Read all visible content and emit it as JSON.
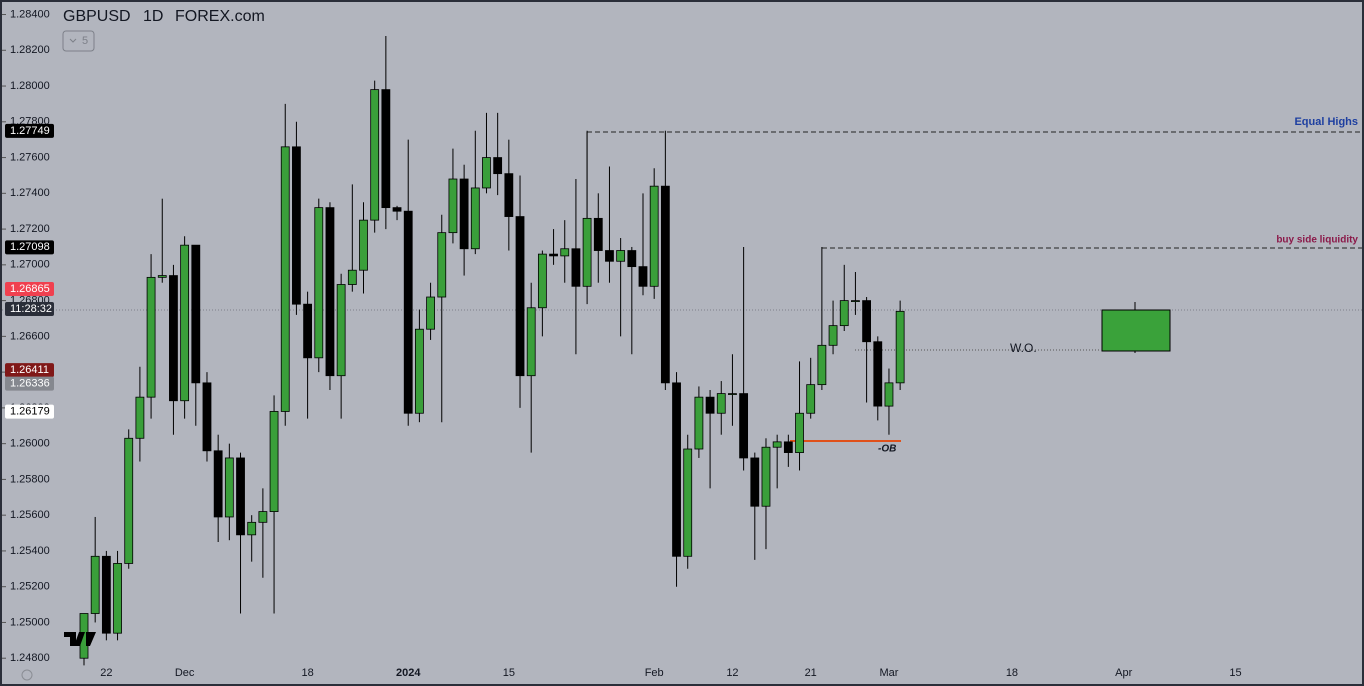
{
  "header": {
    "symbol": "GBPUSD",
    "interval": "1D",
    "exchange": "FOREX.com",
    "indicator_count": 5
  },
  "chart_data": {
    "type": "candlestick",
    "categories": [
      null,
      null,
      "22",
      null,
      null,
      null,
      null,
      null,
      null,
      "Dec",
      null,
      null,
      null,
      null,
      null,
      null,
      null,
      null,
      null,
      null,
      "18",
      null,
      null,
      null,
      null,
      null,
      null,
      null,
      null,
      "2024",
      null,
      null,
      null,
      null,
      null,
      null,
      null,
      null,
      "15",
      null,
      null,
      null,
      null,
      null,
      null,
      null,
      null,
      null,
      null,
      null,
      null,
      "Feb",
      null,
      null,
      null,
      null,
      null,
      null,
      "12",
      null,
      null,
      null,
      null,
      null,
      null,
      "21",
      null,
      null,
      null,
      null,
      null,
      null,
      "Mar",
      null,
      null,
      null,
      null,
      null,
      null,
      null,
      null,
      null,
      null,
      "18",
      null,
      null,
      null,
      null,
      null,
      null,
      null,
      null,
      null,
      "Apr",
      null,
      null,
      null,
      null,
      null,
      null,
      null,
      null,
      null,
      "15"
    ],
    "open": [
      1.248,
      1.2505,
      1.2537,
      1.2494,
      1.2533,
      1.2603,
      1.2626,
      1.2693,
      1.2694,
      1.2624,
      1.2711,
      1.2634,
      1.2596,
      1.2559,
      1.2592,
      1.2549,
      1.2556,
      1.2562,
      1.2618,
      1.2766,
      1.2678,
      1.2648,
      1.2732,
      1.2638,
      1.2689,
      1.2697,
      1.2725,
      1.2798,
      1.2732,
      1.273,
      1.2617,
      1.2664,
      1.2682,
      1.2718,
      1.2748,
      1.2709,
      1.2743,
      1.276,
      1.2751,
      1.2727,
      1.2638,
      1.2676,
      1.2706,
      1.2705,
      1.2709,
      1.2688,
      1.2726,
      1.2708,
      1.2702,
      1.2708,
      1.2699,
      1.2688,
      1.2744,
      1.2634,
      1.2537,
      1.2597,
      1.2626,
      1.2617,
      1.2628,
      1.2628,
      1.2592,
      1.2565,
      1.2598,
      1.2601,
      1.2595,
      1.2617,
      1.2633,
      1.2655,
      1.2666,
      1.268,
      1.268,
      1.2657,
      1.2621,
      1.2634,
      null,
      null,
      null,
      null,
      null,
      null,
      null,
      null,
      null,
      null,
      null,
      null,
      null,
      null,
      null,
      null,
      null,
      null,
      null,
      null,
      null,
      null,
      null,
      null,
      null,
      null,
      null,
      null,
      null,
      null
    ],
    "high": [
      1.2505,
      1.2559,
      1.254,
      1.254,
      1.2608,
      1.2643,
      1.2706,
      1.2737,
      1.27,
      1.2716,
      1.2711,
      1.264,
      1.2605,
      1.26,
      1.2595,
      1.256,
      1.2575,
      1.2627,
      1.279,
      1.278,
      1.2685,
      1.2737,
      1.2735,
      1.2695,
      1.2745,
      1.2735,
      1.2803,
      1.2828,
      1.2733,
      1.277,
      1.2675,
      1.269,
      1.2728,
      1.2765,
      1.2756,
      1.2775,
      1.2785,
      1.2785,
      1.277,
      1.275,
      1.269,
      1.2708,
      1.272,
      1.2725,
      1.2748,
      1.2775,
      1.274,
      1.2755,
      1.2715,
      1.271,
      1.274,
      1.2754,
      1.2775,
      1.264,
      1.2605,
      1.2632,
      1.263,
      1.2635,
      1.265,
      1.271,
      1.2595,
      1.2603,
      1.2605,
      1.2605,
      1.2646,
      1.2648,
      1.271,
      1.268,
      1.27,
      1.2696,
      1.2682,
      1.266,
      1.2642,
      1.268,
      null,
      null,
      null,
      null,
      null,
      null,
      null,
      null,
      null,
      null,
      null,
      null,
      null,
      null,
      null,
      null,
      null,
      null,
      null,
      null,
      null,
      null,
      null,
      null,
      null,
      null,
      null,
      null,
      null,
      null
    ],
    "low": [
      1.2476,
      1.25,
      1.249,
      1.249,
      1.253,
      1.259,
      1.2614,
      1.269,
      1.2605,
      1.2614,
      1.261,
      1.259,
      1.2545,
      1.2546,
      1.2505,
      1.2534,
      1.2525,
      1.2505,
      1.261,
      1.2672,
      1.2614,
      1.264,
      1.263,
      1.2614,
      1.2685,
      1.2684,
      1.2718,
      1.272,
      1.2725,
      1.261,
      1.2612,
      1.2658,
      1.2612,
      1.2712,
      1.2694,
      1.2706,
      1.274,
      1.2739,
      1.2708,
      1.262,
      1.2595,
      1.266,
      1.27,
      1.269,
      1.265,
      1.2678,
      1.269,
      1.269,
      1.266,
      1.265,
      1.2683,
      1.2681,
      1.263,
      1.252,
      1.253,
      1.2592,
      1.2575,
      1.2605,
      1.261,
      1.2585,
      1.2535,
      1.2541,
      1.2575,
      1.2587,
      1.2585,
      1.2614,
      1.263,
      1.265,
      1.2663,
      1.2672,
      1.2623,
      1.2613,
      1.2605,
      1.263,
      null,
      null,
      null,
      null,
      null,
      null,
      null,
      null,
      null,
      null,
      null,
      null,
      null,
      null,
      null,
      null,
      null,
      null,
      null,
      null,
      null,
      null,
      null,
      null,
      null,
      null,
      null,
      null,
      null,
      null
    ],
    "close": [
      1.2505,
      1.2537,
      1.2494,
      1.2533,
      1.2603,
      1.2626,
      1.2693,
      1.2694,
      1.2624,
      1.2711,
      1.2634,
      1.2596,
      1.2559,
      1.2592,
      1.2549,
      1.2556,
      1.2562,
      1.2618,
      1.2766,
      1.2678,
      1.2648,
      1.2732,
      1.2638,
      1.2689,
      1.2697,
      1.2725,
      1.2798,
      1.2732,
      1.273,
      1.2617,
      1.2664,
      1.2682,
      1.2718,
      1.2748,
      1.2709,
      1.2743,
      1.276,
      1.2751,
      1.2727,
      1.2638,
      1.2676,
      1.2706,
      1.2705,
      1.2709,
      1.2688,
      1.2726,
      1.2708,
      1.2702,
      1.2708,
      1.2699,
      1.2688,
      1.2744,
      1.2634,
      1.2537,
      1.2597,
      1.2626,
      1.2617,
      1.2628,
      1.2628,
      1.2592,
      1.2565,
      1.2598,
      1.2601,
      1.2595,
      1.2617,
      1.2633,
      1.2655,
      1.2666,
      1.268,
      1.268,
      1.2657,
      1.2621,
      1.2634,
      1.2674,
      null,
      null,
      null,
      null,
      null,
      null,
      null,
      null,
      null,
      null,
      null,
      null,
      null,
      null,
      null,
      null,
      null,
      null,
      null,
      null,
      null,
      null,
      null,
      null,
      null,
      null,
      null,
      null,
      null,
      null
    ],
    "up_color": "#3a9f3a",
    "down_color": "#000000",
    "ylim": [
      1.2479,
      1.2847
    ],
    "yticks": [
      {
        "value": 1.284,
        "label": "1.28400"
      },
      {
        "value": 1.282,
        "label": "1.28200"
      },
      {
        "value": 1.28,
        "label": "1.28000"
      },
      {
        "value": 1.278,
        "label": "1.27800"
      },
      {
        "value": 1.276,
        "label": "1.27600"
      },
      {
        "value": 1.274,
        "label": "1.27400"
      },
      {
        "value": 1.272,
        "label": "1.27200"
      },
      {
        "value": 1.27,
        "label": "1.27000"
      },
      {
        "value": 1.268,
        "label": "1.26800"
      },
      {
        "value": 1.266,
        "label": "1.26600"
      },
      {
        "value": 1.264,
        "label": "1.26400"
      },
      {
        "value": 1.262,
        "label": "1.26200"
      },
      {
        "value": 1.26,
        "label": "1.26000"
      },
      {
        "value": 1.258,
        "label": "1.25800"
      },
      {
        "value": 1.256,
        "label": "1.25600"
      },
      {
        "value": 1.254,
        "label": "1.25400"
      },
      {
        "value": 1.252,
        "label": "1.25200"
      },
      {
        "value": 1.25,
        "label": "1.25000"
      },
      {
        "value": 1.248,
        "label": "1.24800"
      }
    ],
    "price_tags": [
      {
        "value": 1.27749,
        "label": "1.27749",
        "color": "#000000",
        "text_color": "#ffffff"
      },
      {
        "value": 1.27098,
        "label": "1.27098",
        "color": "#000000",
        "text_color": "#ffffff"
      },
      {
        "value": 1.26865,
        "label": "1.26865",
        "color": "#f0404f",
        "text_color": "#ffffff"
      },
      {
        "value": 1.26411,
        "label": "1.26411",
        "color": "#801818",
        "text_color": "#ffffff"
      },
      {
        "value": 1.26336,
        "label": "1.26336",
        "color": "#85888f",
        "text_color": "#ffffff"
      },
      {
        "value": 1.26179,
        "label": "1.26179",
        "color": "#ffffff",
        "text_color": "#000000"
      }
    ],
    "countdown": "11:28:32",
    "annotations": [
      "Equal Highs",
      "buy side liquidity",
      "W.O.",
      "-OB"
    ]
  }
}
